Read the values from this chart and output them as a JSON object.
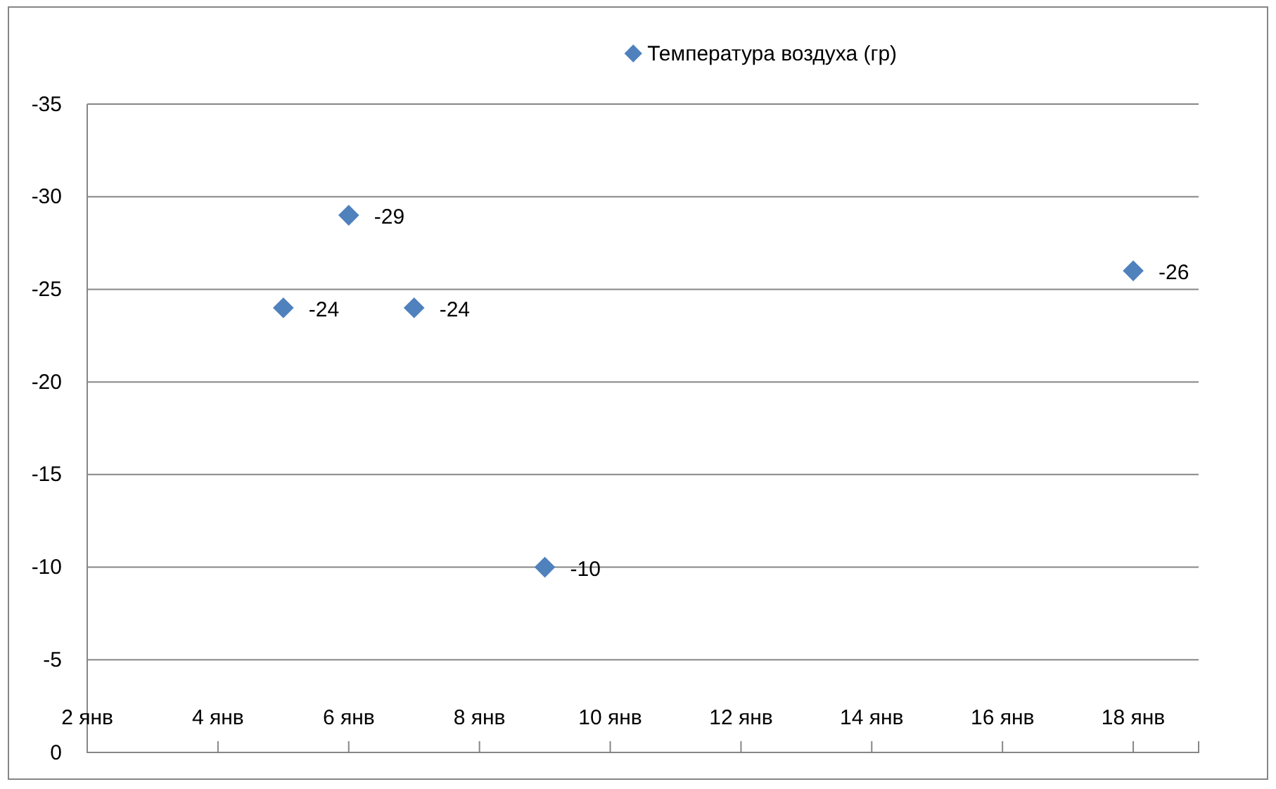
{
  "chart_data": {
    "type": "scatter",
    "x": [
      "--01-05",
      "--01-06",
      "--01-07",
      "--01-09",
      "--01-18"
    ],
    "series": [
      {
        "name": "Температура воздуха (гр)",
        "color": "#4f81bd",
        "values": [
          -24,
          -29,
          -24,
          -10,
          -26
        ]
      }
    ],
    "xlim": [
      "--01-02",
      "--01-19"
    ],
    "xticks": [
      {
        "value": "--01-02",
        "label": "2 янв"
      },
      {
        "value": "--01-04",
        "label": "4 янв"
      },
      {
        "value": "--01-06",
        "label": "6 янв"
      },
      {
        "value": "--01-08",
        "label": "8 янв"
      },
      {
        "value": "--01-10",
        "label": "10 янв"
      },
      {
        "value": "--01-12",
        "label": "12 янв"
      },
      {
        "value": "--01-14",
        "label": "14 янв"
      },
      {
        "value": "--01-16",
        "label": "16 янв"
      },
      {
        "value": "--01-18",
        "label": "18 янв"
      }
    ],
    "ylim": [
      0,
      -35
    ],
    "yticks": [
      0,
      -5,
      -10,
      -15,
      -20,
      -25,
      -30,
      -35
    ],
    "grid": "y",
    "legend": "top",
    "marker": "diamond",
    "data_labels": true
  }
}
